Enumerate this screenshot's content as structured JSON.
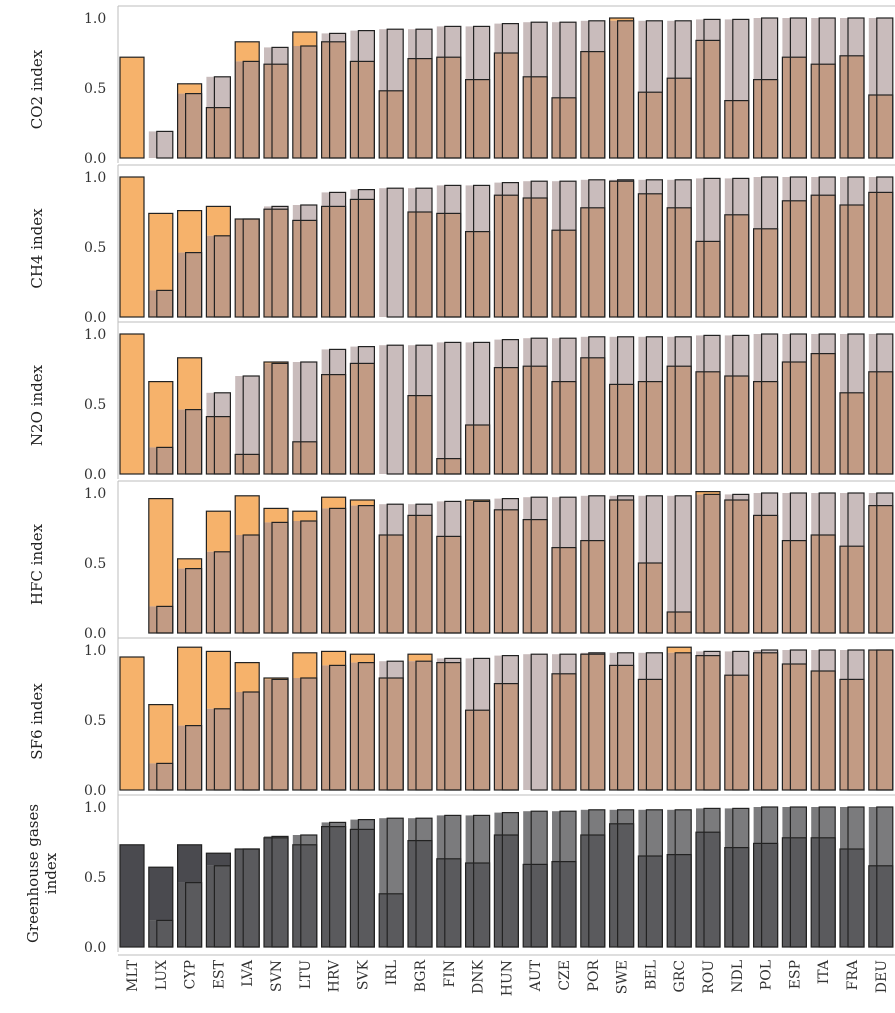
{
  "colors": {
    "orange": "#f6b26b",
    "gray_bar": "#c9bcbc",
    "overlap": "#c29b84",
    "dark_primary": "#4a4a4f",
    "dark_secondary": "#7b7b7d",
    "dark_overlap": "#5a5a5d",
    "axis": "#333333",
    "panel_border": "#bdbdbd"
  },
  "chart_data": {
    "type": "bar",
    "layout": "small-multiples, overlaid paired bars per country",
    "categories": [
      "MLT",
      "LUX",
      "CYP",
      "EST",
      "LVA",
      "SVN",
      "LTU",
      "HRV",
      "SVK",
      "IRL",
      "BGR",
      "FIN",
      "DNK",
      "HUN",
      "AUT",
      "CZE",
      "POR",
      "SWE",
      "BEL",
      "GRC",
      "ROU",
      "NDL",
      "POL",
      "ESP",
      "ITA",
      "FRA",
      "DEU"
    ],
    "ylim": [
      0,
      1.05
    ],
    "yticks": [
      "0.0",
      "0.5",
      "1.0"
    ],
    "grid": false,
    "legend": "none",
    "panels": [
      {
        "ylabel": "CO2 index",
        "series": [
          {
            "values": [
              0.72,
              0.0,
              0.53,
              0.36,
              0.83,
              0.67,
              0.9,
              0.83,
              0.69,
              0.48,
              0.71,
              0.72,
              0.56,
              0.75,
              0.58,
              0.43,
              0.76,
              1.0,
              0.47,
              0.57,
              0.84,
              0.41,
              0.56,
              0.72,
              0.67,
              0.73,
              0.45
            ]
          },
          {
            "values": [
              0.0,
              0.19,
              0.46,
              0.58,
              0.69,
              0.79,
              0.8,
              0.89,
              0.91,
              0.92,
              0.92,
              0.94,
              0.94,
              0.96,
              0.97,
              0.97,
              0.98,
              0.98,
              0.98,
              0.98,
              0.99,
              0.99,
              1.0,
              1.0,
              1.0,
              1.0,
              1.0
            ]
          }
        ]
      },
      {
        "ylabel": "CH4 index",
        "series": [
          {
            "values": [
              1.0,
              0.74,
              0.76,
              0.79,
              0.7,
              0.77,
              0.69,
              0.79,
              0.84,
              0.0,
              0.75,
              0.74,
              0.61,
              0.87,
              0.85,
              0.62,
              0.78,
              0.97,
              0.88,
              0.78,
              0.54,
              0.73,
              0.63,
              0.83,
              0.87,
              0.8,
              0.89
            ]
          },
          {
            "values": [
              0.0,
              0.19,
              0.46,
              0.58,
              0.7,
              0.79,
              0.8,
              0.89,
              0.91,
              0.92,
              0.92,
              0.94,
              0.94,
              0.96,
              0.97,
              0.97,
              0.98,
              0.98,
              0.98,
              0.98,
              0.99,
              0.99,
              1.0,
              1.0,
              1.0,
              1.0,
              1.0
            ]
          }
        ]
      },
      {
        "ylabel": "N2O index",
        "series": [
          {
            "values": [
              1.0,
              0.66,
              0.83,
              0.41,
              0.14,
              0.8,
              0.23,
              0.71,
              0.79,
              0.0,
              0.56,
              0.11,
              0.35,
              0.76,
              0.77,
              0.66,
              0.83,
              0.64,
              0.66,
              0.77,
              0.73,
              0.7,
              0.66,
              0.8,
              0.86,
              0.58,
              0.73
            ]
          },
          {
            "values": [
              0.0,
              0.19,
              0.46,
              0.58,
              0.7,
              0.79,
              0.8,
              0.89,
              0.91,
              0.92,
              0.92,
              0.94,
              0.94,
              0.96,
              0.97,
              0.97,
              0.98,
              0.98,
              0.98,
              0.98,
              0.99,
              0.99,
              1.0,
              1.0,
              1.0,
              1.0,
              1.0
            ]
          }
        ]
      },
      {
        "ylabel": "HFC index",
        "series": [
          {
            "values": [
              0.0,
              0.96,
              0.53,
              0.87,
              0.98,
              0.89,
              0.87,
              0.97,
              0.95,
              0.7,
              0.84,
              0.69,
              0.95,
              0.88,
              0.81,
              0.61,
              0.66,
              0.95,
              0.5,
              0.15,
              1.01,
              0.95,
              0.84,
              0.66,
              0.7,
              0.62,
              0.91
            ]
          },
          {
            "values": [
              0.0,
              0.19,
              0.46,
              0.58,
              0.7,
              0.79,
              0.8,
              0.89,
              0.91,
              0.92,
              0.92,
              0.94,
              0.94,
              0.96,
              0.97,
              0.97,
              0.98,
              0.98,
              0.98,
              0.98,
              0.99,
              0.99,
              1.0,
              1.0,
              1.0,
              1.0,
              1.0
            ]
          }
        ]
      },
      {
        "ylabel": "SF6 index",
        "series": [
          {
            "values": [
              0.95,
              0.61,
              1.02,
              0.99,
              0.91,
              0.8,
              0.98,
              0.99,
              0.97,
              0.8,
              0.97,
              0.91,
              0.57,
              0.76,
              0.0,
              0.83,
              0.97,
              0.89,
              0.79,
              1.02,
              0.96,
              0.82,
              0.98,
              0.9,
              0.85,
              0.79,
              1.0
            ]
          },
          {
            "values": [
              0.0,
              0.19,
              0.46,
              0.58,
              0.7,
              0.79,
              0.8,
              0.89,
              0.91,
              0.92,
              0.92,
              0.94,
              0.94,
              0.96,
              0.97,
              0.97,
              0.98,
              0.98,
              0.98,
              0.98,
              0.99,
              0.99,
              1.0,
              1.0,
              1.0,
              1.0,
              1.0
            ]
          }
        ]
      },
      {
        "ylabel": "Greenhouse gases index",
        "ylabel_lines": [
          "Greenhouse gases",
          "index"
        ],
        "dark": true,
        "series": [
          {
            "values": [
              0.73,
              0.57,
              0.73,
              0.67,
              0.7,
              0.78,
              0.73,
              0.86,
              0.84,
              0.38,
              0.76,
              0.63,
              0.6,
              0.8,
              0.59,
              0.61,
              0.8,
              0.88,
              0.65,
              0.66,
              0.82,
              0.71,
              0.74,
              0.78,
              0.78,
              0.7,
              0.58
            ]
          },
          {
            "values": [
              0.0,
              0.19,
              0.46,
              0.58,
              0.7,
              0.79,
              0.8,
              0.89,
              0.91,
              0.92,
              0.92,
              0.94,
              0.94,
              0.96,
              0.97,
              0.97,
              0.98,
              0.98,
              0.98,
              0.98,
              0.99,
              0.99,
              1.0,
              1.0,
              1.0,
              1.0,
              1.0
            ]
          }
        ]
      }
    ]
  }
}
